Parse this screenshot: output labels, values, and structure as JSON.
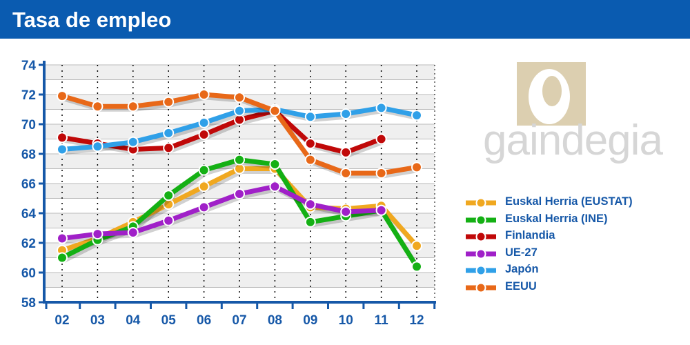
{
  "header": {
    "title": "Tasa de empleo"
  },
  "logo": {
    "text": "gaindegia"
  },
  "chart_data": {
    "type": "line",
    "title": "Tasa de empleo",
    "categories": [
      "02",
      "03",
      "04",
      "05",
      "06",
      "07",
      "08",
      "09",
      "10",
      "11",
      "12"
    ],
    "ylim": [
      58,
      74
    ],
    "yticks": [
      "58",
      "60",
      "62",
      "64",
      "66",
      "68",
      "70",
      "72",
      "74"
    ],
    "grid": true,
    "legend_position": "right",
    "series": [
      {
        "name": "Euskal Herria (EUSTAT)",
        "color": "#f0a820",
        "values": [
          61.5,
          62.3,
          63.4,
          64.6,
          65.8,
          67.0,
          67.0,
          64.4,
          64.3,
          64.5,
          61.8
        ]
      },
      {
        "name": "Euskal Herria (INE)",
        "color": "#14b014",
        "values": [
          61.0,
          62.2,
          63.1,
          65.2,
          66.9,
          67.6,
          67.3,
          63.4,
          63.8,
          64.2,
          60.4
        ]
      },
      {
        "name": "Finlandia",
        "color": "#c00808",
        "values": [
          69.1,
          68.7,
          68.3,
          68.4,
          69.3,
          70.3,
          70.9,
          68.7,
          68.1,
          69.0,
          null
        ]
      },
      {
        "name": "UE-27",
        "color": "#a020c8",
        "values": [
          62.3,
          62.6,
          62.7,
          63.5,
          64.4,
          65.3,
          65.8,
          64.6,
          64.1,
          64.2,
          null
        ]
      },
      {
        "name": "Japón",
        "color": "#30a0e8",
        "values": [
          68.3,
          68.5,
          68.8,
          69.4,
          70.1,
          70.9,
          71.0,
          70.5,
          70.7,
          71.1,
          70.6
        ]
      },
      {
        "name": "EEUU",
        "color": "#e86818",
        "values": [
          71.9,
          71.2,
          71.2,
          71.5,
          72.0,
          71.8,
          70.9,
          67.6,
          66.7,
          66.7,
          67.1
        ]
      }
    ]
  }
}
